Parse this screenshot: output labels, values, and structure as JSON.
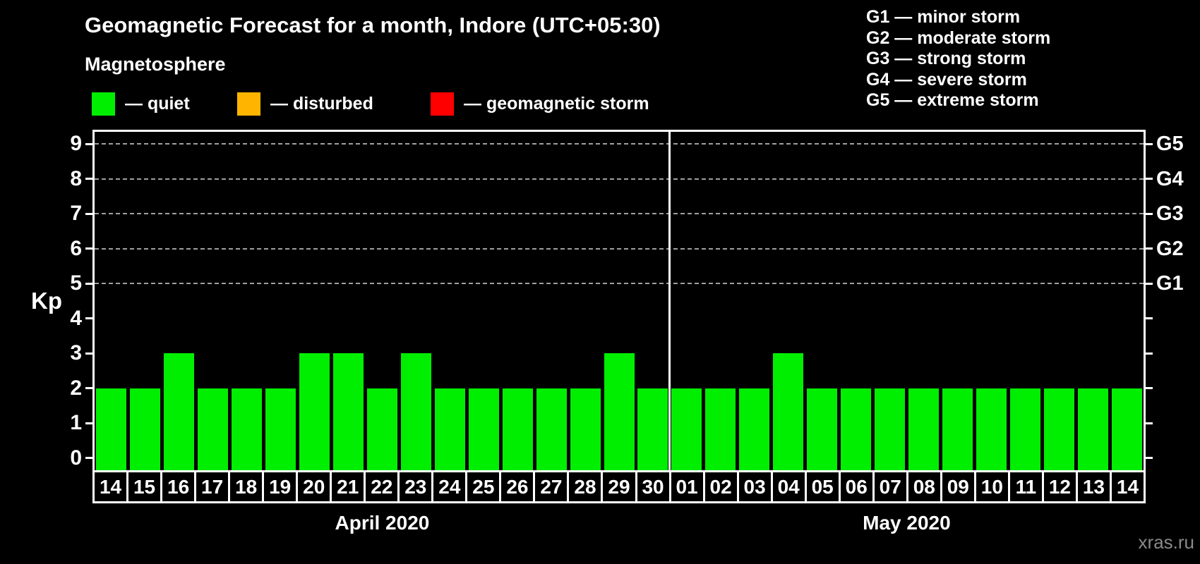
{
  "title": "Geomagnetic Forecast for a month, Indore (UTC+05:30)",
  "subtitle": "Magnetosphere",
  "legend": {
    "items": [
      {
        "name": "quiet",
        "label": "— quiet",
        "color": "#00ee00"
      },
      {
        "name": "disturbed",
        "label": "— disturbed",
        "color": "#ffb400"
      },
      {
        "name": "geomagnetic-storm",
        "label": "— geomagnetic storm",
        "color": "#ff0000"
      }
    ]
  },
  "storm_scale": {
    "items": [
      "G1 — minor storm",
      "G2 — moderate storm",
      "G3 — strong storm",
      "G4 — severe storm",
      "G5 — extreme storm"
    ]
  },
  "watermark": "xras.ru",
  "chart_data": {
    "type": "bar",
    "title": "Geomagnetic Forecast for a month, Indore (UTC+05:30)",
    "ylabel": "Kp",
    "ylim": [
      0,
      9
    ],
    "yticks": [
      0,
      1,
      2,
      3,
      4,
      5,
      6,
      7,
      8,
      9
    ],
    "grid_levels": [
      5,
      6,
      7,
      8,
      9
    ],
    "grid_style": "dashed gray horizontal lines at storm levels only",
    "bar_color": "#00ee00",
    "right_axis": [
      {
        "kp": 5,
        "label": "G1"
      },
      {
        "kp": 6,
        "label": "G2"
      },
      {
        "kp": 7,
        "label": "G3"
      },
      {
        "kp": 8,
        "label": "G4"
      },
      {
        "kp": 9,
        "label": "G5"
      }
    ],
    "months": [
      {
        "label": "April 2020",
        "days": [
          "14",
          "15",
          "16",
          "17",
          "18",
          "19",
          "20",
          "21",
          "22",
          "23",
          "24",
          "25",
          "26",
          "27",
          "28",
          "29",
          "30"
        ],
        "values": [
          2,
          2,
          3,
          2,
          2,
          2,
          3,
          3,
          2,
          3,
          2,
          2,
          2,
          2,
          2,
          3,
          2
        ]
      },
      {
        "label": "May 2020",
        "days": [
          "01",
          "02",
          "03",
          "04",
          "05",
          "06",
          "07",
          "08",
          "09",
          "10",
          "11",
          "12",
          "13",
          "14"
        ],
        "values": [
          2,
          2,
          2,
          3,
          2,
          2,
          2,
          2,
          2,
          2,
          2,
          2,
          2,
          2
        ]
      }
    ]
  }
}
